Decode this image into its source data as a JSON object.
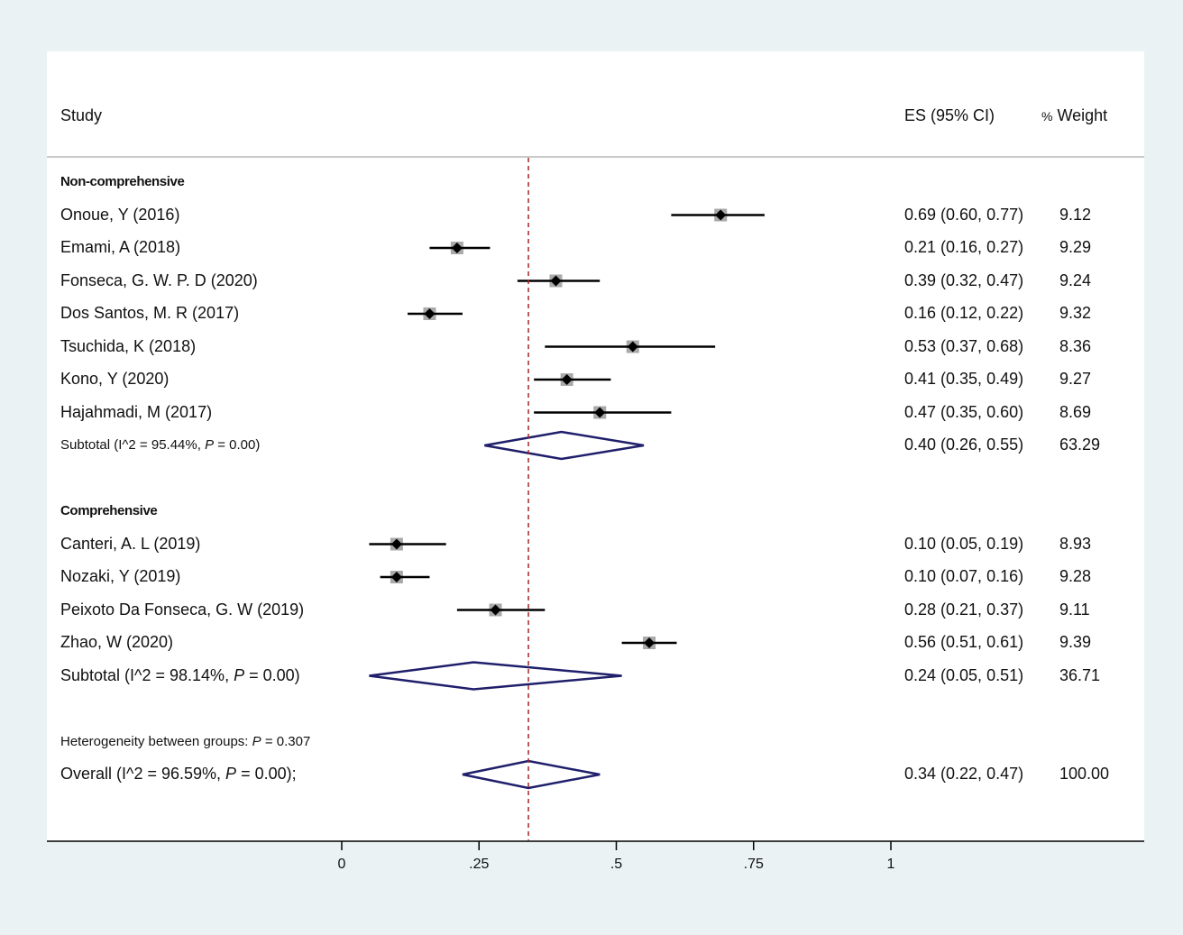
{
  "header": {
    "study": "Study",
    "es": "ES (95% CI)",
    "weight_prefix": "%",
    "weight": "Weight"
  },
  "chart_data": {
    "type": "forest",
    "xlim": [
      0,
      1
    ],
    "xticks": [
      {
        "value": 0,
        "label": "0"
      },
      {
        "value": 0.25,
        "label": ".25"
      },
      {
        "value": 0.5,
        "label": ".5"
      },
      {
        "value": 0.75,
        "label": ".75"
      },
      {
        "value": 1,
        "label": "1"
      }
    ],
    "overall_line": 0.34,
    "groups": [
      {
        "name": "Non-comprehensive",
        "studies": [
          {
            "label": "Onoue, Y (2016)",
            "es": 0.69,
            "lo": 0.6,
            "hi": 0.77,
            "es_text": "0.69 (0.60, 0.77)",
            "weight": "9.12"
          },
          {
            "label": "Emami, A (2018)",
            "es": 0.21,
            "lo": 0.16,
            "hi": 0.27,
            "es_text": "0.21 (0.16, 0.27)",
            "weight": "9.29"
          },
          {
            "label": "Fonseca, G. W. P. D (2020)",
            "es": 0.39,
            "lo": 0.32,
            "hi": 0.47,
            "es_text": "0.39 (0.32, 0.47)",
            "weight": "9.24"
          },
          {
            "label": "Dos Santos, M. R (2017)",
            "es": 0.16,
            "lo": 0.12,
            "hi": 0.22,
            "es_text": "0.16 (0.12, 0.22)",
            "weight": "9.32"
          },
          {
            "label": "Tsuchida, K (2018)",
            "es": 0.53,
            "lo": 0.37,
            "hi": 0.68,
            "es_text": "0.53 (0.37, 0.68)",
            "weight": "8.36"
          },
          {
            "label": "Kono, Y (2020)",
            "es": 0.41,
            "lo": 0.35,
            "hi": 0.49,
            "es_text": "0.41 (0.35, 0.49)",
            "weight": "9.27"
          },
          {
            "label": "Hajahmadi, M (2017)",
            "es": 0.47,
            "lo": 0.35,
            "hi": 0.6,
            "es_text": "0.47 (0.35, 0.60)",
            "weight": "8.69"
          }
        ],
        "subtotal": {
          "label_pre": "Subtotal  (I^2 = 95.44%, ",
          "p_italic": "P",
          "label_post": " = 0.00)",
          "es": 0.4,
          "lo": 0.26,
          "hi": 0.55,
          "es_text": "0.40 (0.26, 0.55)",
          "weight": "63.29"
        }
      },
      {
        "name": "Comprehensive",
        "studies": [
          {
            "label": "Canteri, A. L (2019)",
            "es": 0.1,
            "lo": 0.05,
            "hi": 0.19,
            "es_text": "0.10 (0.05, 0.19)",
            "weight": "8.93"
          },
          {
            "label": "Nozaki, Y (2019)",
            "es": 0.1,
            "lo": 0.07,
            "hi": 0.16,
            "es_text": "0.10 (0.07, 0.16)",
            "weight": "9.28"
          },
          {
            "label": "Peixoto Da Fonseca, G. W (2019)",
            "es": 0.28,
            "lo": 0.21,
            "hi": 0.37,
            "es_text": "0.28 (0.21, 0.37)",
            "weight": "9.11"
          },
          {
            "label": "Zhao, W (2020)",
            "es": 0.56,
            "lo": 0.51,
            "hi": 0.61,
            "es_text": "0.56 (0.51, 0.61)",
            "weight": "9.39"
          }
        ],
        "subtotal": {
          "label_pre": "Subtotal  (I^2 = 98.14%, ",
          "p_italic": "P",
          "label_post": " = 0.00)",
          "es": 0.24,
          "lo": 0.05,
          "hi": 0.51,
          "es_text": "0.24 (0.05, 0.51)",
          "weight": "36.71"
        }
      }
    ],
    "heterogeneity": {
      "pre": "Heterogeneity between groups: ",
      "p_italic": "P",
      "post": " = 0.307"
    },
    "overall": {
      "label_pre": "Overall  (I^2 = 96.59%, ",
      "p_italic": "P",
      "label_post": " = 0.00);",
      "es": 0.34,
      "lo": 0.22,
      "hi": 0.47,
      "es_text": "0.34 (0.22, 0.47)",
      "weight": "100.00"
    },
    "colors": {
      "diamond": "#1f1f6b",
      "ref_line": "#a0282d",
      "marker_box": "#a9a9a9",
      "ci": "#000000"
    }
  }
}
